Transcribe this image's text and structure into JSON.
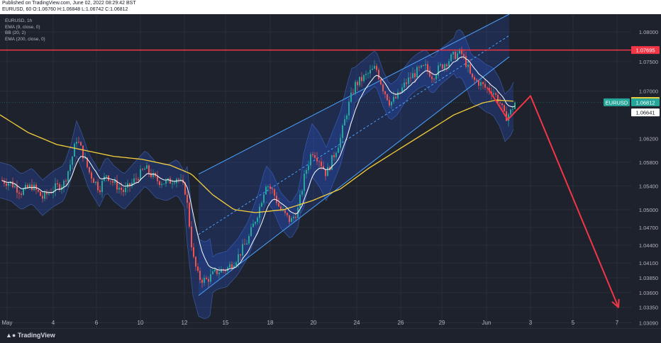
{
  "header": {
    "published": "Published on TradingView.com, June 02, 2022 08:29:42 BST",
    "ohlc": "EURUSD, 60  O:1.06760 H:1.06848 L:1.06742 C:1.06812"
  },
  "legend": {
    "symbol": "EURUSD, 1h",
    "ema9": "EMA (9, close, 0)",
    "bb": "BB (20, 2)",
    "ema200": "EMA (200, close, 0)"
  },
  "price_axis": {
    "ticks": [
      "1.08000",
      "1.07500",
      "1.07000",
      "1.06200",
      "1.05800",
      "1.05400",
      "1.05000",
      "1.04700",
      "1.04400",
      "1.04100",
      "1.03850",
      "1.03600",
      "1.03350",
      "1.03090"
    ],
    "labels": {
      "resistance": "1.07695",
      "ema200": "1.06834",
      "symbol": "EURUSD",
      "last": "1.06812",
      "bb_low": "1.06641"
    }
  },
  "time_axis": [
    "May",
    "4",
    "6",
    "10",
    "12",
    "15",
    "18",
    "20",
    "24",
    "26",
    "29",
    "Jun",
    "3",
    "5",
    "7"
  ],
  "branding": {
    "logo": "TradingView"
  },
  "colors": {
    "background": "#1e222d",
    "resistance": "#f23645",
    "ema200": "#f5d03b",
    "ema9": "#ffffff",
    "bb_fill": "#2962ff",
    "channel": "#4aa3ff",
    "projection": "#f23645",
    "last_label": "#26a69a"
  },
  "chart_data": {
    "type": "candlestick",
    "symbol": "EURUSD",
    "interval": "1h",
    "last_close": 1.06812,
    "resistance_level": 1.07695,
    "ema200_value": 1.06834,
    "bb_lower_value": 1.06641,
    "ylim": [
      1.03,
      1.083
    ],
    "price_path": [
      [
        0,
        1.055
      ],
      [
        15,
        1.0545
      ],
      [
        30,
        1.053
      ],
      [
        45,
        1.054
      ],
      [
        60,
        1.052
      ],
      [
        75,
        1.0535
      ],
      [
        90,
        1.0545
      ],
      [
        100,
        1.058
      ],
      [
        108,
        1.062
      ],
      [
        115,
        1.06
      ],
      [
        125,
        1.0565
      ],
      [
        140,
        1.0535
      ],
      [
        150,
        1.056
      ],
      [
        160,
        1.0545
      ],
      [
        175,
        1.053
      ],
      [
        190,
        1.055
      ],
      [
        205,
        1.057
      ],
      [
        220,
        1.055
      ],
      [
        235,
        1.0545
      ],
      [
        250,
        1.0555
      ],
      [
        262,
        1.053
      ],
      [
        272,
        1.042
      ],
      [
        280,
        1.0385
      ],
      [
        290,
        1.038
      ],
      [
        305,
        1.0395
      ],
      [
        320,
        1.04
      ],
      [
        335,
        1.042
      ],
      [
        350,
        1.045
      ],
      [
        365,
        1.05
      ],
      [
        375,
        1.0545
      ],
      [
        385,
        1.053
      ],
      [
        395,
        1.05
      ],
      [
        410,
        1.048
      ],
      [
        420,
        1.05
      ],
      [
        430,
        1.056
      ],
      [
        440,
        1.06
      ],
      [
        450,
        1.0585
      ],
      [
        460,
        1.056
      ],
      [
        470,
        1.059
      ],
      [
        480,
        1.062
      ],
      [
        490,
        1.067
      ],
      [
        500,
        1.071
      ],
      [
        510,
        1.072
      ],
      [
        520,
        1.073
      ],
      [
        530,
        1.074
      ],
      [
        540,
        1.0705
      ],
      [
        550,
        1.068
      ],
      [
        560,
        1.069
      ],
      [
        570,
        1.071
      ],
      [
        580,
        1.0725
      ],
      [
        590,
        1.0735
      ],
      [
        600,
        1.074
      ],
      [
        610,
        1.0725
      ],
      [
        620,
        1.074
      ],
      [
        630,
        1.075
      ],
      [
        640,
        1.076
      ],
      [
        650,
        1.0765
      ],
      [
        658,
        1.0745
      ],
      [
        665,
        1.072
      ],
      [
        675,
        1.0715
      ],
      [
        685,
        1.0705
      ],
      [
        695,
        1.07
      ],
      [
        705,
        1.068
      ],
      [
        712,
        1.0655
      ],
      [
        720,
        1.0665
      ],
      [
        726,
        1.0681
      ]
    ],
    "ema200_path": [
      [
        0,
        1.066
      ],
      [
        40,
        1.063
      ],
      [
        80,
        1.061
      ],
      [
        120,
        1.06
      ],
      [
        160,
        1.059
      ],
      [
        200,
        1.0585
      ],
      [
        240,
        1.0575
      ],
      [
        270,
        1.056
      ],
      [
        300,
        1.0525
      ],
      [
        330,
        1.05
      ],
      [
        360,
        1.0495
      ],
      [
        400,
        1.05
      ],
      [
        440,
        1.0515
      ],
      [
        480,
        1.0535
      ],
      [
        520,
        1.057
      ],
      [
        560,
        1.06
      ],
      [
        600,
        1.063
      ],
      [
        640,
        1.066
      ],
      [
        680,
        1.068
      ],
      [
        700,
        1.0685
      ],
      [
        726,
        1.0683
      ]
    ],
    "channel": {
      "lower": [
        [
          280,
          1.0355
        ],
        [
          718,
          1.0758
        ]
      ],
      "upper": [
        [
          280,
          1.056
        ],
        [
          718,
          1.083
        ]
      ],
      "mid": [
        [
          280,
          1.0458
        ],
        [
          718,
          1.0794
        ]
      ]
    },
    "projection": [
      [
        688,
        1.0705
      ],
      [
        716,
        1.0652
      ],
      [
        748,
        1.0692
      ],
      [
        872,
        1.0335
      ]
    ]
  }
}
